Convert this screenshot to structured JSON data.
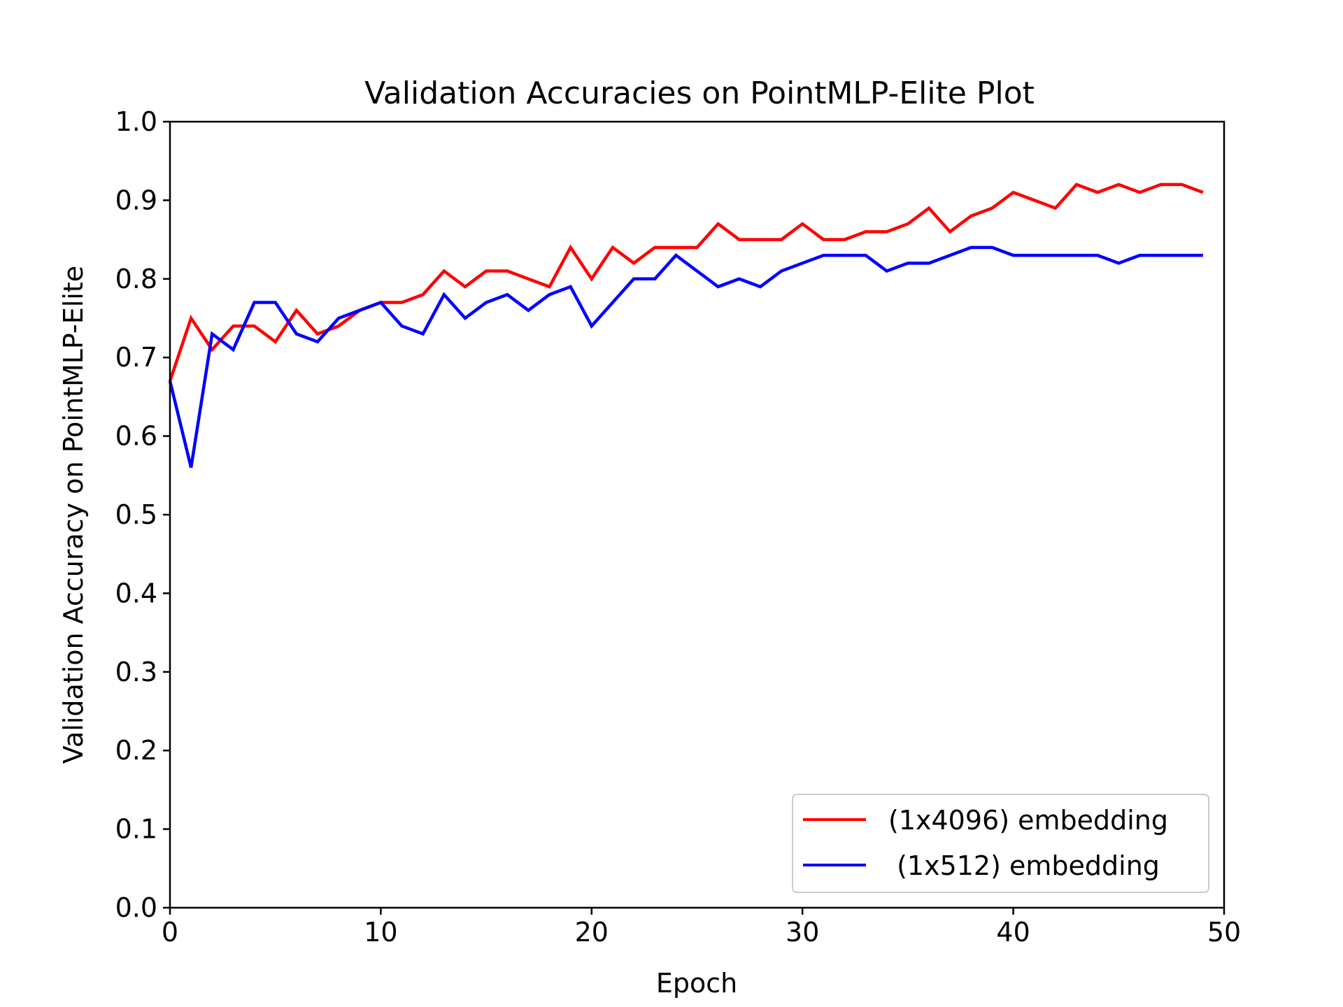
{
  "chart_data": {
    "type": "line",
    "title": "Validation Accuracies on PointMLP-Elite Plot",
    "xlabel": "Epoch",
    "ylabel": "Validation Accuracy on PointMLP-Elite",
    "xlim": [
      0,
      50
    ],
    "ylim": [
      0.0,
      1.0
    ],
    "xticks": [
      0,
      10,
      20,
      30,
      40,
      50
    ],
    "xtick_labels": [
      "0",
      "10",
      "20",
      "30",
      "40",
      "50"
    ],
    "yticks": [
      0.0,
      0.1,
      0.2,
      0.3,
      0.4,
      0.5,
      0.6,
      0.7,
      0.8,
      0.9,
      1.0
    ],
    "ytick_labels": [
      "0.0",
      "0.1",
      "0.2",
      "0.3",
      "0.4",
      "0.5",
      "0.6",
      "0.7",
      "0.8",
      "0.9",
      "1.0"
    ],
    "grid": false,
    "legend_position": "lower-right",
    "x": [
      0,
      1,
      2,
      3,
      4,
      5,
      6,
      7,
      8,
      9,
      10,
      11,
      12,
      13,
      14,
      15,
      16,
      17,
      18,
      19,
      20,
      21,
      22,
      23,
      24,
      25,
      26,
      27,
      28,
      29,
      30,
      31,
      32,
      33,
      34,
      35,
      36,
      37,
      38,
      39,
      40,
      41,
      42,
      43,
      44,
      45,
      46,
      47,
      48,
      49
    ],
    "series": [
      {
        "name": "(1x4096) embedding",
        "color": "#ff0000",
        "values": [
          0.67,
          0.75,
          0.71,
          0.74,
          0.74,
          0.72,
          0.76,
          0.73,
          0.74,
          0.76,
          0.77,
          0.77,
          0.78,
          0.81,
          0.79,
          0.81,
          0.81,
          0.8,
          0.79,
          0.84,
          0.8,
          0.84,
          0.82,
          0.84,
          0.84,
          0.84,
          0.87,
          0.85,
          0.85,
          0.85,
          0.87,
          0.85,
          0.85,
          0.86,
          0.86,
          0.87,
          0.89,
          0.86,
          0.88,
          0.89,
          0.91,
          0.9,
          0.89,
          0.92,
          0.91,
          0.92,
          0.91,
          0.92,
          0.92,
          0.91
        ]
      },
      {
        "name": " (1x512) embedding",
        "color": "#0000ff",
        "values": [
          0.67,
          0.56,
          0.73,
          0.71,
          0.77,
          0.77,
          0.73,
          0.72,
          0.75,
          0.76,
          0.77,
          0.74,
          0.73,
          0.78,
          0.75,
          0.77,
          0.78,
          0.76,
          0.78,
          0.79,
          0.74,
          0.77,
          0.8,
          0.8,
          0.83,
          0.81,
          0.79,
          0.8,
          0.79,
          0.81,
          0.82,
          0.83,
          0.83,
          0.83,
          0.81,
          0.82,
          0.82,
          0.83,
          0.84,
          0.84,
          0.83,
          0.83,
          0.83,
          0.83,
          0.83,
          0.82,
          0.83,
          0.83,
          0.83,
          0.83
        ]
      }
    ]
  }
}
